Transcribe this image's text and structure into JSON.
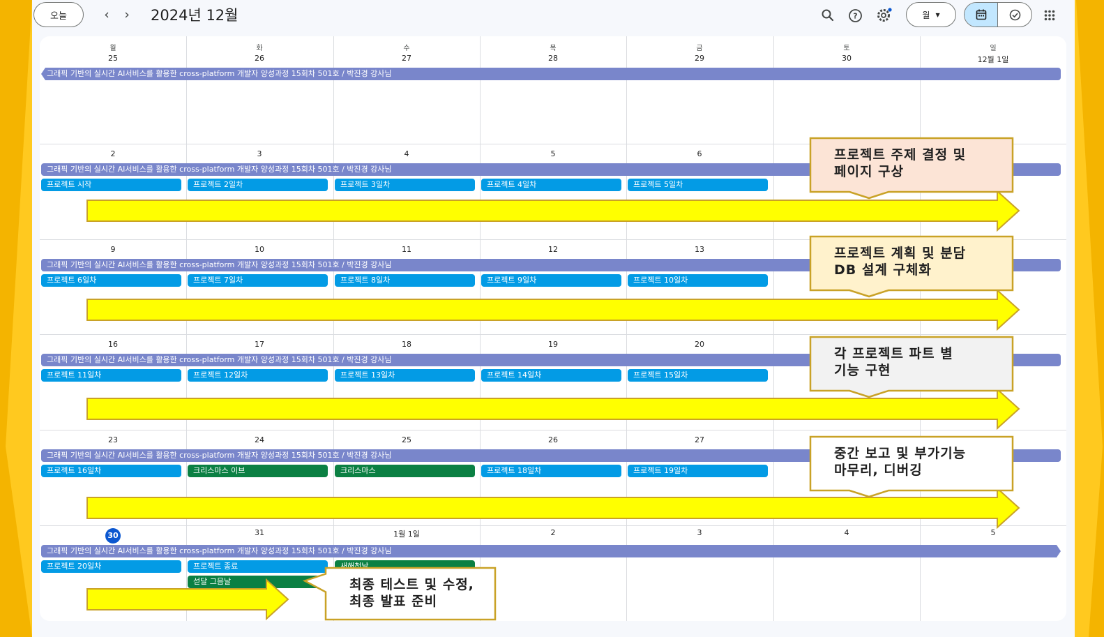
{
  "colors": {
    "frame": "#ffc91f",
    "frame_dark": "#f4b400",
    "course_bar": "#7986cb",
    "day_bar": "#039be5",
    "holiday_bar": "#0b8043",
    "arrow_fill": "#ffff00",
    "arrow_border": "#c9a227",
    "callout_border": "#c9a227",
    "today_circle": "#0b57d0"
  },
  "toolbar": {
    "today_label": "오늘",
    "prev_icon": "chevron-left-icon",
    "next_icon": "chevron-right-icon",
    "title": "2024년 12월",
    "view_label": "월",
    "icons": [
      "search-icon",
      "help-icon",
      "settings-icon",
      "apps-grid-icon"
    ],
    "toggle_icons": [
      "calendar-icon",
      "tasks-check-icon"
    ]
  },
  "weekdays": [
    "월",
    "화",
    "수",
    "목",
    "금",
    "토",
    "일"
  ],
  "weeks": [
    {
      "days": [
        "25",
        "26",
        "27",
        "28",
        "29",
        "30",
        "12월 1일"
      ],
      "course": "그래픽 기반의 실시간 AI서비스를 활용한 cross-platform 개발자 양성과정 15회차 501호 / 박진경 강사님",
      "events": []
    },
    {
      "days": [
        "2",
        "3",
        "4",
        "5",
        "6",
        "",
        ""
      ],
      "course": "그래픽 기반의 실시간 AI서비스를 활용한 cross-platform 개발자 양성과정 15회차 501호 / 박진경 강사님",
      "events": [
        "프로젝트 시작",
        "프로젝트 2일차",
        "프로젝트 3일차",
        "프로젝트 4일차",
        "프로젝트 5일차"
      ],
      "callout": "프로젝트 주제 결정 및\n페이지 구상"
    },
    {
      "days": [
        "9",
        "10",
        "11",
        "12",
        "13",
        "",
        ""
      ],
      "course": "그래픽 기반의 실시간 AI서비스를 활용한 cross-platform 개발자 양성과정 15회차 501호 / 박진경 강사님",
      "events": [
        "프로젝트 6일차",
        "프로젝트 7일차",
        "프로젝트 8일차",
        "프로젝트 9일차",
        "프로젝트 10일차"
      ],
      "callout": "프로젝트 계획 및 분담\nDB 설계 구체화"
    },
    {
      "days": [
        "16",
        "17",
        "18",
        "19",
        "20",
        "",
        ""
      ],
      "course": "그래픽 기반의 실시간 AI서비스를 활용한 cross-platform 개발자 양성과정 15회차 501호 / 박진경 강사님",
      "events": [
        "프로젝트 11일차",
        "프로젝트 12일차",
        "프로젝트 13일차",
        "프로젝트 14일차",
        "프로젝트 15일차"
      ],
      "callout": "각 프로젝트 파트 별\n기능 구현"
    },
    {
      "days": [
        "23",
        "24",
        "25",
        "26",
        "27",
        "",
        ""
      ],
      "course": "그래픽 기반의 실시간 AI서비스를 활용한 cross-platform 개발자 양성과정 15회차 501호 / 박진경 강사님",
      "events": [
        "프로젝트 16일차",
        "크리스마스 이브",
        "크리스마스",
        "프로젝트 18일차",
        "프로젝트 19일차"
      ],
      "callout": "중간 보고 및 부가기능\n마무리, 디버깅"
    },
    {
      "days": [
        "30",
        "31",
        "1월 1일",
        "2",
        "3",
        "4",
        "5"
      ],
      "course": "그래픽 기반의 실시간 AI서비스를 활용한 cross-platform 개발자 양성과정 15회차 501호 / 박진경 강사님",
      "events": [
        "프로젝트 20일차",
        "프로젝트 종료",
        "새해첫날"
      ],
      "extra_event": "섣달 그믐날",
      "callout": "최종 테스트 및 수정,\n최종 발표 준비"
    }
  ]
}
